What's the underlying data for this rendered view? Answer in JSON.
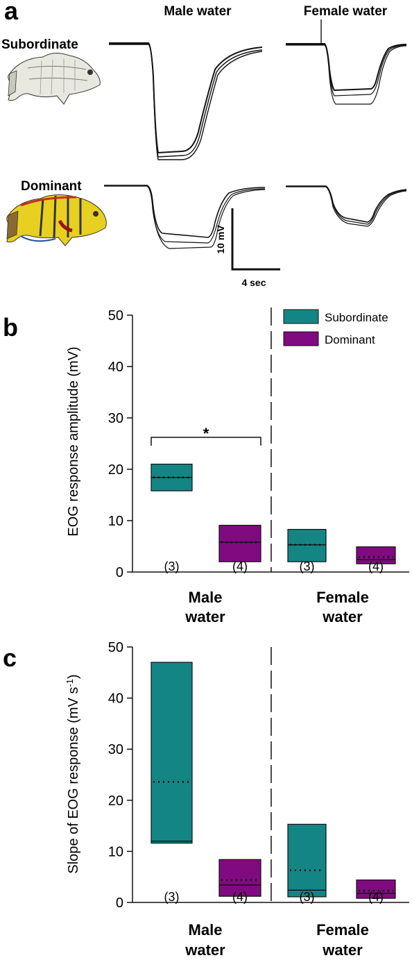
{
  "panel_a": {
    "letter": "a",
    "col_male": "Male water",
    "col_female": "Female water",
    "row_sub": "Subordinate",
    "row_dom": "Dominant",
    "scale_y": "10 mV",
    "scale_x": "4 sec"
  },
  "panel_b": {
    "letter": "b",
    "sig": "*"
  },
  "panel_c": {
    "letter": "c"
  },
  "colors": {
    "subordinate": "#148585",
    "dominant": "#800a80"
  },
  "chart_data": [
    {
      "type": "box",
      "ylabel": "EOG response amplitude (mV)",
      "ylim": [
        0,
        50
      ],
      "yticks": [
        "0",
        "10",
        "20",
        "30",
        "40",
        "50"
      ],
      "groups": [
        {
          "label_l1": "Male",
          "label_l2": "water"
        },
        {
          "label_l1": "Female",
          "label_l2": "water"
        }
      ],
      "legend": [
        "Subordinate",
        "Dominant"
      ],
      "boxes": [
        {
          "series": "Subordinate",
          "group": 0,
          "low": 15.8,
          "high": 21.0,
          "median": 18.4,
          "mean": 18.4,
          "n": "(3)"
        },
        {
          "series": "Dominant",
          "group": 0,
          "low": 2.0,
          "high": 9.1,
          "median": 5.8,
          "mean": 5.8,
          "n": "(4)"
        },
        {
          "series": "Subordinate",
          "group": 1,
          "low": 2.0,
          "high": 8.3,
          "median": 5.3,
          "mean": 5.3,
          "n": "(3)"
        },
        {
          "series": "Dominant",
          "group": 1,
          "low": 1.6,
          "high": 4.9,
          "median": 2.4,
          "mean": 2.9,
          "n": "(4)"
        }
      ]
    },
    {
      "type": "box",
      "ylabel_main": "Slope of EOG response (mV s",
      "ylabel_sup": "-1",
      "ylabel_end": ")",
      "ylim": [
        0,
        50
      ],
      "yticks": [
        "0",
        "10",
        "20",
        "30",
        "40",
        "50"
      ],
      "groups": [
        {
          "label_l1": "Male",
          "label_l2": "water"
        },
        {
          "label_l1": "Female",
          "label_l2": "water"
        }
      ],
      "boxes": [
        {
          "series": "Subordinate",
          "group": 0,
          "low": 11.6,
          "high": 47.0,
          "median": 12.0,
          "mean": 23.6,
          "n": "(3)"
        },
        {
          "series": "Dominant",
          "group": 0,
          "low": 1.2,
          "high": 8.4,
          "median": 3.4,
          "mean": 4.4,
          "n": "(4)"
        },
        {
          "series": "Subordinate",
          "group": 1,
          "low": 1.1,
          "high": 15.3,
          "median": 2.4,
          "mean": 6.3,
          "n": "(3)"
        },
        {
          "series": "Dominant",
          "group": 1,
          "low": 0.8,
          "high": 4.4,
          "median": 1.8,
          "mean": 2.3,
          "n": "(4)"
        }
      ]
    }
  ]
}
